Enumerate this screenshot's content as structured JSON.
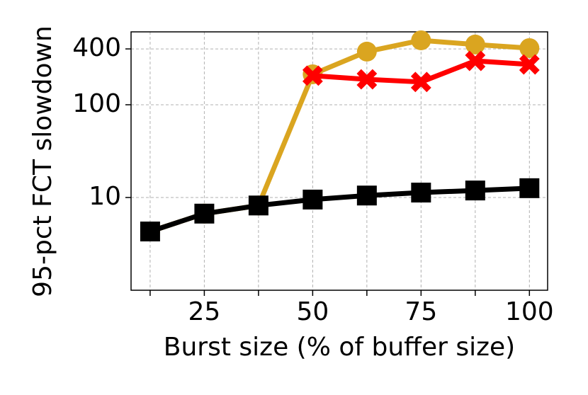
{
  "chart_data": {
    "type": "line",
    "x_label": "Burst size (% of buffer size)",
    "y_label": "95-pct FCT slowdown",
    "x": [
      12.5,
      25,
      37.5,
      50,
      62.5,
      75,
      87.5,
      100
    ],
    "series": [
      {
        "color": "#daa520",
        "marker": "circle",
        "values": [
          4.3,
          6.7,
          8.2,
          213,
          374,
          495,
          446,
          408
        ]
      },
      {
        "color": "#ff0000",
        "marker": "x",
        "values": [
          null,
          null,
          null,
          206,
          188,
          176,
          297,
          272
        ]
      },
      {
        "color": "#000000",
        "marker": "square",
        "values": [
          4.3,
          6.7,
          8.2,
          9.5,
          10.5,
          11.3,
          11.9,
          12.6
        ]
      }
    ],
    "xlim": [
      8.1,
      104.2
    ],
    "xticks": [
      25,
      50,
      75,
      100
    ],
    "xminorticks": [
      12.5,
      37.5,
      62.5,
      87.5
    ],
    "ylim": [
      1,
      611
    ],
    "yticks": [
      10,
      100,
      400
    ],
    "yscale": "log",
    "grid": true
  }
}
